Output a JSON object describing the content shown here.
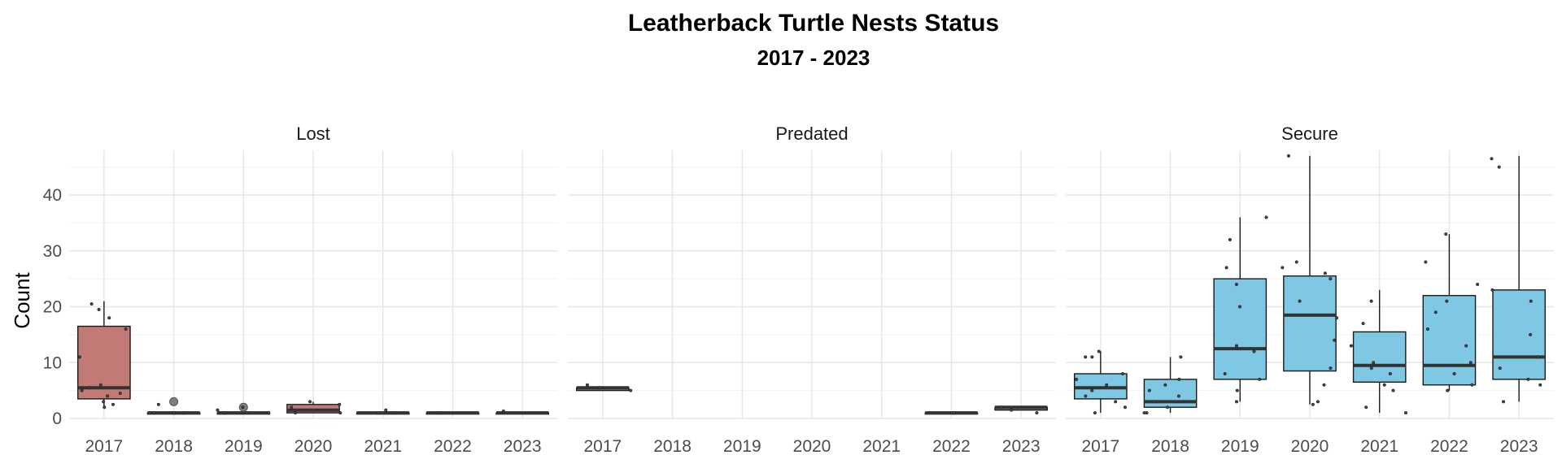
{
  "chart_data": {
    "type": "boxplot",
    "title": "Leatherback Turtle Nests Status",
    "subtitle": "2017 - 2023",
    "ylabel": "Count",
    "xlabel": "",
    "ylim": [
      0,
      48
    ],
    "yticks": [
      0,
      10,
      20,
      30,
      40
    ],
    "grid": true,
    "categories": [
      "2017",
      "2018",
      "2019",
      "2020",
      "2021",
      "2022",
      "2023"
    ],
    "colors": {
      "Lost": "#c17a76",
      "Predated": "#7a7a7a",
      "Secure": "#7ec8e3"
    },
    "panels": [
      {
        "name": "Lost",
        "boxes": [
          {
            "x": "2017",
            "q1": 3.5,
            "median": 5.5,
            "q3": 16.5,
            "lower": 2,
            "upper": 21,
            "points": [
              3,
              4,
              5,
              5.5,
              6,
              2,
              11,
              16,
              18,
              19.5,
              20.5,
              4.5,
              2.5
            ]
          },
          {
            "x": "2018",
            "q1": 1,
            "median": 1,
            "q3": 1,
            "lower": 1,
            "upper": 1,
            "outliers": [
              3
            ],
            "points": [
              1,
              1,
              2.5,
              1,
              1
            ]
          },
          {
            "x": "2019",
            "q1": 1,
            "median": 1,
            "q3": 1,
            "lower": 1,
            "upper": 1,
            "outliers": [
              2
            ],
            "points": [
              1,
              2,
              1,
              1.5,
              1
            ]
          },
          {
            "x": "2020",
            "q1": 1,
            "median": 1.5,
            "q3": 2.5,
            "lower": 1,
            "upper": 3,
            "points": [
              1,
              2,
              3,
              2.5,
              1
            ]
          },
          {
            "x": "2021",
            "q1": 1,
            "median": 1,
            "q3": 1,
            "lower": 1,
            "upper": 1,
            "points": [
              1,
              1.5,
              1
            ]
          },
          {
            "x": "2022",
            "q1": 1,
            "median": 1,
            "q3": 1,
            "lower": 1,
            "upper": 1,
            "points": [
              1
            ]
          },
          {
            "x": "2023",
            "q1": 1,
            "median": 1,
            "q3": 1,
            "lower": 1,
            "upper": 1,
            "points": [
              1.3
            ]
          }
        ]
      },
      {
        "name": "Predated",
        "boxes": [
          {
            "x": "2017",
            "q1": 5,
            "median": 5.5,
            "q3": 5.5,
            "lower": 5,
            "upper": 5.5,
            "points": [
              5,
              5.5,
              6
            ]
          },
          {
            "x": "2022",
            "q1": 1,
            "median": 1,
            "q3": 1,
            "lower": 1,
            "upper": 1,
            "points": [
              1
            ]
          },
          {
            "x": "2023",
            "q1": 1.5,
            "median": 2,
            "q3": 2,
            "lower": 1.5,
            "upper": 2,
            "points": [
              1.5,
              2,
              1
            ]
          }
        ]
      },
      {
        "name": "Secure",
        "boxes": [
          {
            "x": "2017",
            "q1": 3.5,
            "median": 5.5,
            "q3": 8,
            "lower": 1,
            "upper": 12,
            "points": [
              11,
              5,
              7,
              2,
              4,
              8,
              12,
              11,
              6,
              1,
              3
            ]
          },
          {
            "x": "2018",
            "q1": 2,
            "median": 3,
            "q3": 7,
            "lower": 1,
            "upper": 11,
            "points": [
              7,
              5,
              3,
              2,
              1,
              1,
              6,
              11,
              4
            ]
          },
          {
            "x": "2019",
            "q1": 7,
            "median": 12.5,
            "q3": 25,
            "lower": 3,
            "upper": 36,
            "points": [
              36,
              32,
              24,
              20,
              13,
              7,
              5,
              3,
              27,
              8,
              12
            ]
          },
          {
            "x": "2020",
            "q1": 8.5,
            "median": 18.5,
            "q3": 25.5,
            "lower": 2.5,
            "upper": 47,
            "points": [
              47,
              28,
              26,
              25,
              18,
              14,
              9,
              6,
              3,
              2.5,
              27,
              21
            ]
          },
          {
            "x": "2021",
            "q1": 6.5,
            "median": 9.5,
            "q3": 15.5,
            "lower": 1,
            "upper": 23,
            "points": [
              21,
              17,
              10,
              8,
              5,
              2,
              1,
              13,
              9,
              6
            ]
          },
          {
            "x": "2022",
            "q1": 6,
            "median": 9.5,
            "q3": 22,
            "lower": 5,
            "upper": 33,
            "points": [
              33,
              28,
              24,
              21,
              10,
              8,
              5,
              16,
              13,
              6,
              19
            ]
          },
          {
            "x": "2023",
            "q1": 7,
            "median": 11,
            "q3": 23,
            "lower": 3,
            "upper": 47,
            "points": [
              46.5,
              45,
              21,
              15,
              7,
              6,
              3,
              11,
              9,
              23
            ]
          }
        ]
      }
    ]
  }
}
